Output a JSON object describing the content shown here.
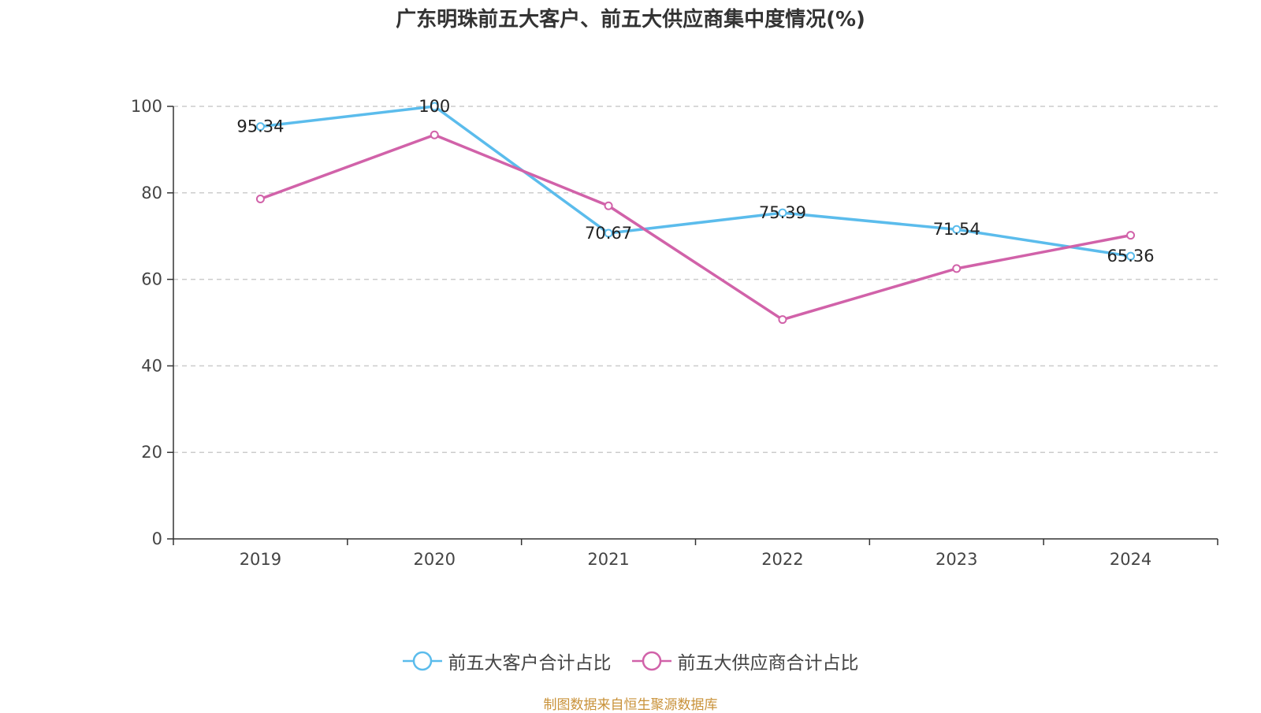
{
  "chart_data": {
    "type": "line",
    "title": "广东明珠前五大客户、前五大供应商集中度情况(%)",
    "categories": [
      "2019",
      "2020",
      "2021",
      "2022",
      "2023",
      "2024"
    ],
    "series": [
      {
        "name": "前五大客户合计占比",
        "color": "#5bbcec",
        "values": [
          95.34,
          100,
          70.67,
          75.39,
          71.54,
          65.36
        ],
        "show_labels": true
      },
      {
        "name": "前五大供应商合计占比",
        "color": "#d162a9",
        "values": [
          78.6,
          93.4,
          77.0,
          50.7,
          62.5,
          70.2
        ],
        "show_labels": false
      }
    ],
    "ylim": [
      0,
      100
    ],
    "yticks": [
      0,
      20,
      40,
      60,
      80,
      100
    ],
    "grid": true,
    "legend_position": "bottom"
  },
  "source": "制图数据来自恒生聚源数据库"
}
